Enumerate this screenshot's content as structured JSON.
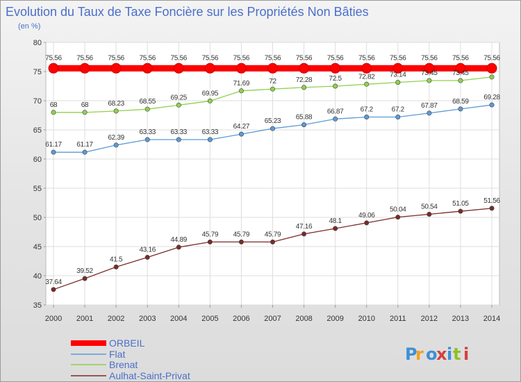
{
  "chart_data": {
    "type": "line",
    "title": "Evolution du Taux de Taxe Foncière sur les Propriétés Non Bâties",
    "subtitle": "(en %)",
    "xlabel": "",
    "ylabel": "",
    "x": [
      "2000",
      "2001",
      "2002",
      "2003",
      "2004",
      "2005",
      "2006",
      "2007",
      "2008",
      "2009",
      "2010",
      "2011",
      "2012",
      "2013",
      "2014"
    ],
    "ylim": [
      35,
      80
    ],
    "yticks": [
      35,
      40,
      45,
      50,
      55,
      60,
      65,
      70,
      75,
      80
    ],
    "grid": true,
    "legend_position": "bottom-left",
    "series": [
      {
        "name": "ORBEIL",
        "color": "#ff0000",
        "values": [
          75.56,
          75.56,
          75.56,
          75.56,
          75.56,
          75.56,
          75.56,
          75.56,
          75.56,
          75.56,
          75.56,
          75.56,
          75.56,
          75.56,
          75.56
        ],
        "labels": [
          "75.56",
          "75.56",
          "75.56",
          "75.56",
          "75.56",
          "75.56",
          "75.56",
          "75.56",
          "75.56",
          "75.56",
          "75.56",
          "75.56",
          "75.56",
          "75.56",
          "75.56"
        ]
      },
      {
        "name": "Flat",
        "color": "#5b9bd5",
        "values": [
          61.17,
          61.17,
          62.39,
          63.33,
          63.33,
          63.33,
          64.27,
          65.23,
          65.88,
          66.87,
          67.2,
          67.2,
          67.87,
          68.59,
          69.28
        ],
        "labels": [
          "61.17",
          "61.17",
          "62.39",
          "63.33",
          "63.33",
          "63.33",
          "64.27",
          "65.23",
          "65.88",
          "66.87",
          "67.2",
          "67.2",
          "67.87",
          "68.59",
          "69.28"
        ]
      },
      {
        "name": "Brenat",
        "color": "#8fd14f",
        "values": [
          68,
          68,
          68.23,
          68.55,
          69.25,
          69.95,
          71.69,
          72,
          72.28,
          72.5,
          72.82,
          73.14,
          73.45,
          73.45,
          74.06
        ],
        "labels": [
          "68",
          "68",
          "68.23",
          "68.55",
          "69.25",
          "69.95",
          "71.69",
          "72",
          "72.28",
          "72.5",
          "72.82",
          "73.14",
          "73.45",
          "73.45",
          ""
        ]
      },
      {
        "name": "Aulhat-Saint-Privat",
        "color": "#7b2a2a",
        "values": [
          37.64,
          39.52,
          41.5,
          43.16,
          44.89,
          45.79,
          45.79,
          45.79,
          47.16,
          48.1,
          49.06,
          50.04,
          50.54,
          51.05,
          51.56
        ],
        "labels": [
          "37.64",
          "39.52",
          "41.5",
          "43.16",
          "44.89",
          "45.79",
          "45.79",
          "45.79",
          "47.16",
          "48.1",
          "49.06",
          "50.04",
          "50.54",
          "51.05",
          "51.56"
        ]
      }
    ]
  },
  "logo": {
    "text": "Proxiti",
    "letter_colors": [
      "#3f8fd6",
      "#f0a020",
      "#3f8fd6",
      "#d63f3f",
      "#3f8fd6",
      "#8fc020",
      "#d63f3f"
    ]
  }
}
